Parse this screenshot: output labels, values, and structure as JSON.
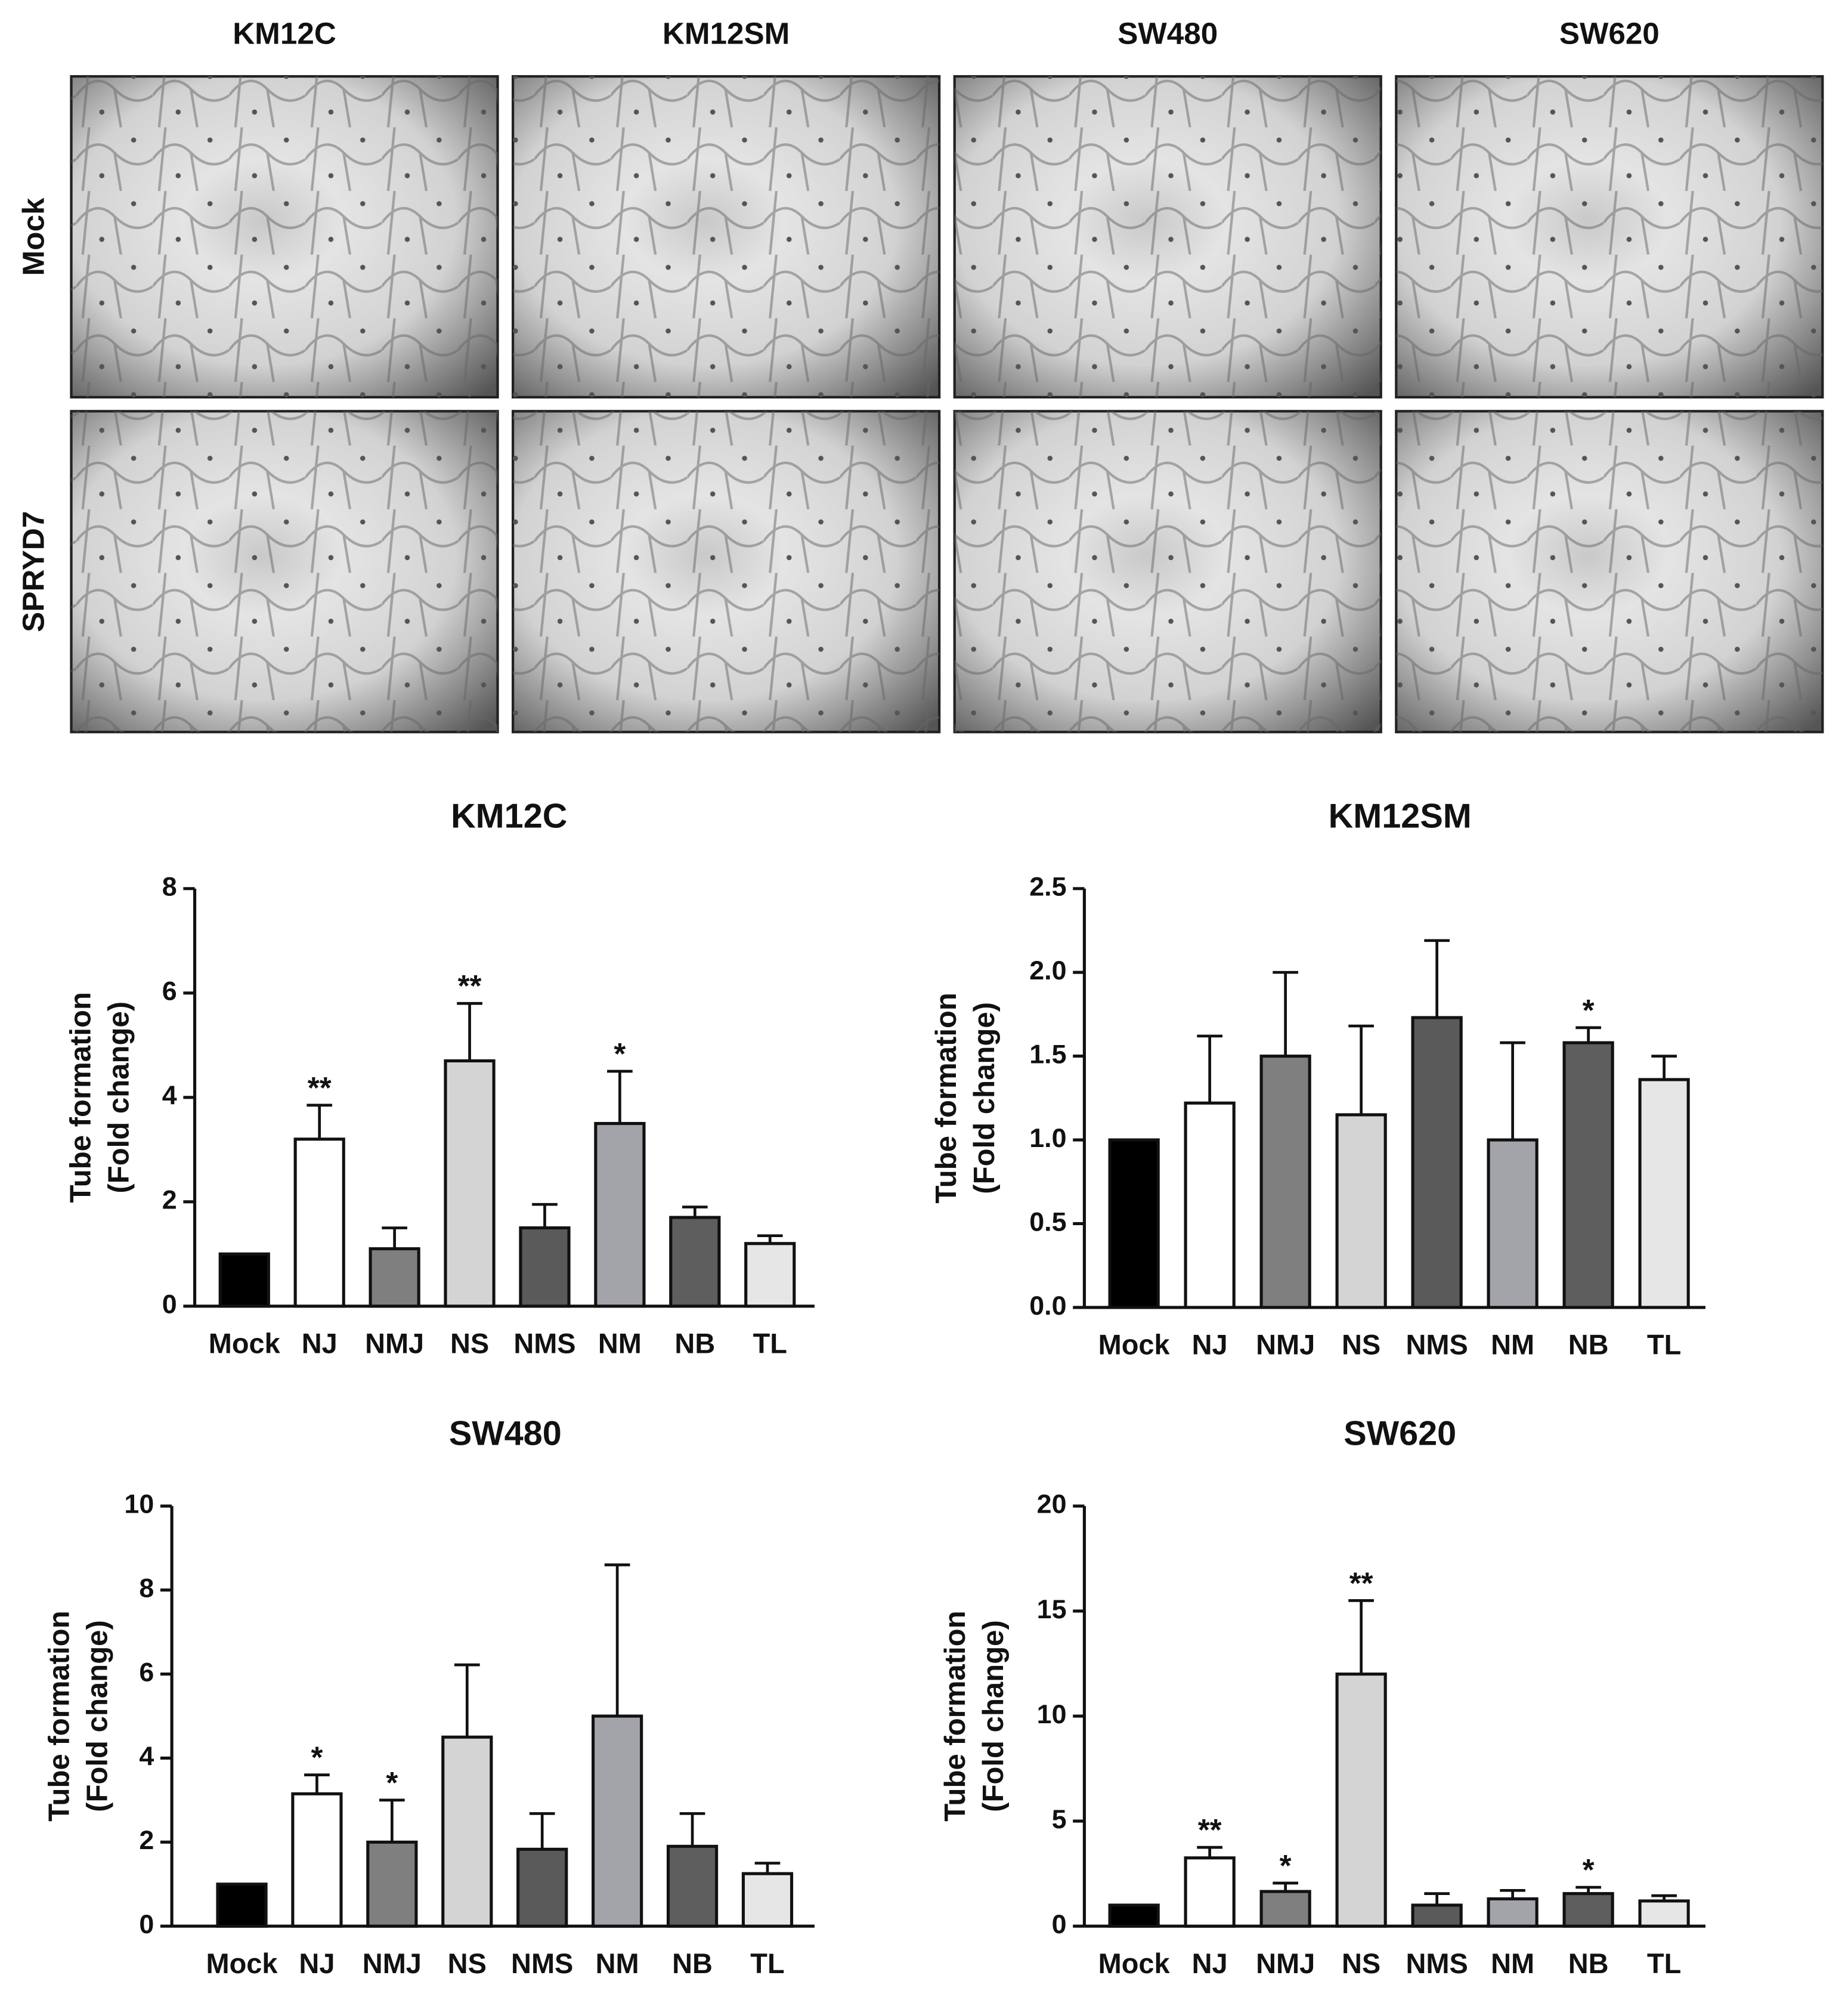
{
  "micrographs": {
    "columns": [
      "KM12C",
      "KM12SM",
      "SW480",
      "SW620"
    ],
    "rows": [
      "Mock",
      "SPRYD7"
    ]
  },
  "chart_data": [
    {
      "type": "bar",
      "title": "KM12C",
      "ylabel": [
        "Tube formation",
        "(Fold change)"
      ],
      "categories": [
        "Mock",
        "NJ",
        "NMJ",
        "NS",
        "NMS",
        "NM",
        "NB",
        "TL"
      ],
      "colors": [
        "#000000",
        "#ffffff",
        "#7f7f7f",
        "#d4d4d4",
        "#5a5a5a",
        "#a3a3aa",
        "#5e5e5e",
        "#e6e6e6"
      ],
      "values": [
        1,
        3.2,
        1.1,
        4.7,
        1.5,
        3.5,
        1.7,
        1.2
      ],
      "errors": [
        0,
        0.65,
        0.4,
        1.1,
        0.45,
        1.0,
        0.2,
        0.15
      ],
      "significance": [
        null,
        "**",
        null,
        "**",
        null,
        "*",
        null,
        null
      ],
      "ylim": [
        0,
        8
      ],
      "yticks": [
        0,
        2,
        4,
        6,
        8
      ]
    },
    {
      "type": "bar",
      "title": "KM12SM",
      "ylabel": [
        "Tube formation",
        "(Fold change)"
      ],
      "categories": [
        "Mock",
        "NJ",
        "NMJ",
        "NS",
        "NMS",
        "NM",
        "NB",
        "TL"
      ],
      "colors": [
        "#000000",
        "#ffffff",
        "#7f7f7f",
        "#d4d4d4",
        "#5a5a5a",
        "#a3a3aa",
        "#5e5e5e",
        "#e6e6e6"
      ],
      "values": [
        1,
        1.22,
        1.5,
        1.15,
        1.73,
        1.0,
        1.58,
        1.36
      ],
      "errors": [
        0,
        0.4,
        0.5,
        0.53,
        0.46,
        0.58,
        0.09,
        0.14
      ],
      "significance": [
        null,
        null,
        null,
        null,
        null,
        null,
        "*",
        null
      ],
      "ylim": [
        0,
        2.5
      ],
      "yticks": [
        {
          "value": 0,
          "label": "0.0"
        },
        {
          "value": 0.5,
          "label": "0.5"
        },
        {
          "value": 1,
          "label": "1.0"
        },
        {
          "value": 1.5,
          "label": "1.5"
        },
        {
          "value": 2,
          "label": "2.0"
        },
        {
          "value": 2.5,
          "label": "2.5"
        }
      ]
    },
    {
      "type": "bar",
      "title": "SW480",
      "ylabel": [
        "Tube formation",
        "(Fold change)"
      ],
      "categories": [
        "Mock",
        "NJ",
        "NMJ",
        "NS",
        "NMS",
        "NM",
        "NB",
        "TL"
      ],
      "colors": [
        "#000000",
        "#ffffff",
        "#7f7f7f",
        "#d4d4d4",
        "#5a5a5a",
        "#a3a3aa",
        "#5e5e5e",
        "#e6e6e6"
      ],
      "values": [
        1,
        3.15,
        2.0,
        4.5,
        1.83,
        5.0,
        1.9,
        1.25
      ],
      "errors": [
        0,
        0.45,
        1.0,
        1.72,
        0.85,
        3.6,
        0.78,
        0.25
      ],
      "significance": [
        null,
        "*",
        "*",
        null,
        null,
        null,
        null,
        null
      ],
      "ylim": [
        0,
        10
      ],
      "yticks": [
        0,
        2,
        4,
        6,
        8,
        10
      ]
    },
    {
      "type": "bar",
      "title": "SW620",
      "ylabel": [
        "Tube formation",
        "(Fold change)"
      ],
      "categories": [
        "Mock",
        "NJ",
        "NMJ",
        "NS",
        "NMS",
        "NM",
        "NB",
        "TL"
      ],
      "colors": [
        "#000000",
        "#ffffff",
        "#7f7f7f",
        "#d4d4d4",
        "#5a5a5a",
        "#a3a3aa",
        "#5e5e5e",
        "#e6e6e6"
      ],
      "values": [
        1,
        3.25,
        1.65,
        12.0,
        1.0,
        1.3,
        1.55,
        1.2
      ],
      "errors": [
        0,
        0.5,
        0.4,
        3.5,
        0.55,
        0.4,
        0.3,
        0.25
      ],
      "significance": [
        null,
        "**",
        "*",
        "**",
        null,
        null,
        "*",
        null
      ],
      "ylim": [
        0,
        20
      ],
      "yticks": [
        0,
        5,
        10,
        15,
        20
      ]
    }
  ]
}
